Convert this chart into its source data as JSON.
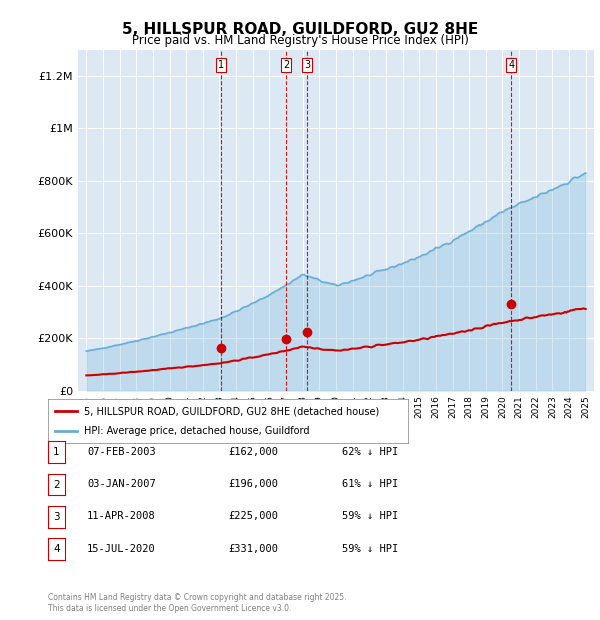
{
  "title": "5, HILLSPUR ROAD, GUILDFORD, GU2 8HE",
  "subtitle": "Price paid vs. HM Land Registry's House Price Index (HPI)",
  "background_color": "#dce9f5",
  "plot_bg_color": "#dce9f5",
  "hpi_color": "#6aaed6",
  "price_color": "#cc0000",
  "marker_color": "#cc0000",
  "dashed_line_color": "#cc0000",
  "ylim": [
    0,
    1300000
  ],
  "yticks": [
    0,
    200000,
    400000,
    600000,
    800000,
    1000000,
    1200000
  ],
  "ytick_labels": [
    "£0",
    "£200K",
    "£400K",
    "£600K",
    "£800K",
    "£1M",
    "£1.2M"
  ],
  "xlim_start": 1994.5,
  "xlim_end": 2025.5,
  "transactions": [
    {
      "num": 1,
      "date": "07-FEB-2003",
      "year": 2003.1,
      "price": 162000,
      "pct": "62%",
      "dir": "↓"
    },
    {
      "num": 2,
      "date": "03-JAN-2007",
      "year": 2007.0,
      "price": 196000,
      "pct": "61%",
      "dir": "↓"
    },
    {
      "num": 3,
      "date": "11-APR-2008",
      "year": 2008.28,
      "price": 225000,
      "pct": "59%",
      "dir": "↓"
    },
    {
      "num": 4,
      "date": "15-JUL-2020",
      "year": 2020.54,
      "price": 331000,
      "pct": "59%",
      "dir": "↓"
    }
  ],
  "legend_label_price": "5, HILLSPUR ROAD, GUILDFORD, GU2 8HE (detached house)",
  "legend_label_hpi": "HPI: Average price, detached house, Guildford",
  "footer": "Contains HM Land Registry data © Crown copyright and database right 2025.\nThis data is licensed under the Open Government Licence v3.0.",
  "table_rows": [
    [
      "1",
      "07-FEB-2003",
      "£162,000",
      "62% ↓ HPI"
    ],
    [
      "2",
      "03-JAN-2007",
      "£196,000",
      "61% ↓ HPI"
    ],
    [
      "3",
      "11-APR-2008",
      "£225,000",
      "59% ↓ HPI"
    ],
    [
      "4",
      "15-JUL-2020",
      "£331,000",
      "59% ↓ HPI"
    ]
  ]
}
